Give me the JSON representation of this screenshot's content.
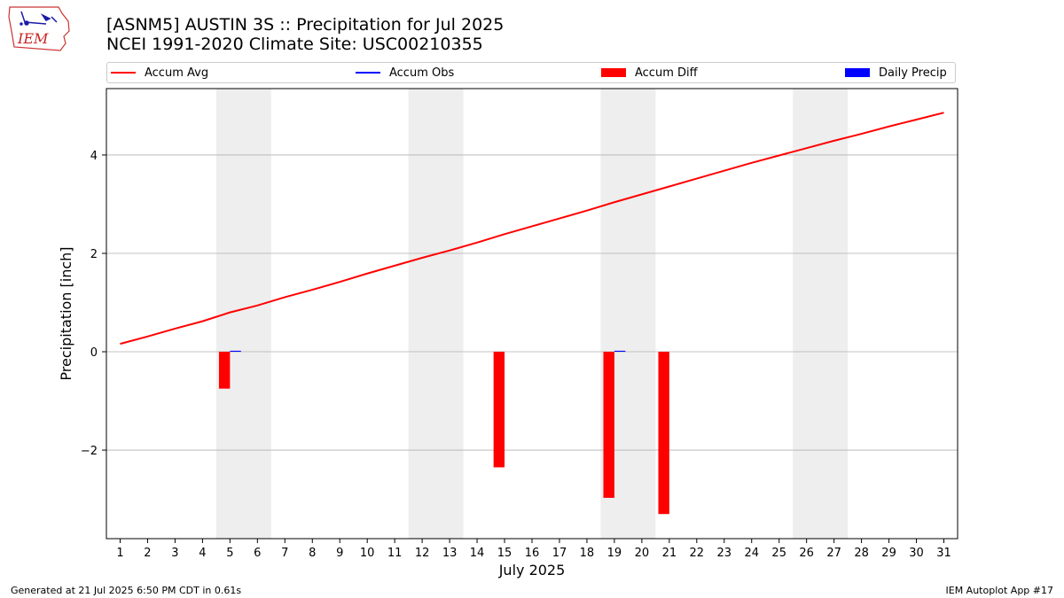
{
  "header": {
    "title_line1": "[ASNM5] AUSTIN 3S :: Precipitation for Jul 2025",
    "title_line2": "NCEI 1991-2020 Climate Site: USC00210355"
  },
  "logo": {
    "text": "IEM"
  },
  "footer": {
    "left": "Generated at 21 Jul 2025 6:50 PM CDT in 0.61s",
    "right": "IEM Autoplot App #17"
  },
  "colors": {
    "accum_avg": "#ff0000",
    "accum_obs": "#0000ff",
    "accum_diff": "#ff0000",
    "daily_precip": "#0000ff",
    "weekend_shade": "#eeeeee",
    "grid": "#b0b0b0"
  },
  "chart_data": {
    "type": "bar",
    "xlabel": "July 2025",
    "ylabel": "Precipitation [inch]",
    "xlim": [
      0.5,
      31.5
    ],
    "ylim": [
      -3.8,
      5.35
    ],
    "x_ticks": [
      1,
      2,
      3,
      4,
      5,
      6,
      7,
      8,
      9,
      10,
      11,
      12,
      13,
      14,
      15,
      16,
      17,
      18,
      19,
      20,
      21,
      22,
      23,
      24,
      25,
      26,
      27,
      28,
      29,
      30,
      31
    ],
    "y_ticks": [
      -2,
      0,
      2,
      4
    ],
    "y_tick_labels": [
      "−2",
      "0",
      "2",
      "4"
    ],
    "grid": "horizontal",
    "legend_location": "top",
    "legend": [
      "Accum Avg",
      "Accum Obs",
      "Accum Diff",
      "Daily Precip"
    ],
    "weekend_spans": [
      [
        4.5,
        6.5
      ],
      [
        11.5,
        13.5
      ],
      [
        18.5,
        20.5
      ],
      [
        25.5,
        27.5
      ]
    ],
    "series": [
      {
        "name": "Accum Avg",
        "type": "line",
        "x": [
          1,
          2,
          3,
          4,
          5,
          6,
          7,
          8,
          9,
          10,
          11,
          12,
          13,
          14,
          15,
          16,
          17,
          18,
          19,
          20,
          21,
          22,
          23,
          24,
          25,
          26,
          27,
          28,
          29,
          30,
          31
        ],
        "values": [
          0.16,
          0.31,
          0.47,
          0.62,
          0.8,
          0.94,
          1.11,
          1.26,
          1.42,
          1.59,
          1.75,
          1.91,
          2.06,
          2.22,
          2.39,
          2.55,
          2.71,
          2.87,
          3.04,
          3.2,
          3.36,
          3.52,
          3.68,
          3.84,
          3.99,
          4.14,
          4.29,
          4.43,
          4.58,
          4.72,
          4.86
        ]
      },
      {
        "name": "Accum Obs",
        "type": "line",
        "x": [],
        "values": []
      },
      {
        "name": "Accum Diff",
        "type": "bar",
        "x": [
          5,
          15,
          19,
          21
        ],
        "values": [
          -0.75,
          -2.35,
          -2.97,
          -3.3
        ]
      },
      {
        "name": "Daily Precip",
        "type": "bar",
        "x": [
          5,
          19
        ],
        "values": [
          0.02,
          0.02
        ]
      }
    ]
  }
}
